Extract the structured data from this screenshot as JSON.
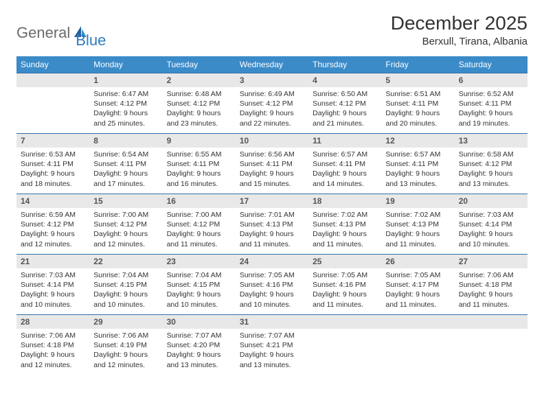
{
  "logo": {
    "word1": "General",
    "word2": "Blue"
  },
  "title": "December 2025",
  "location": "Berxull, Tirana, Albania",
  "colors": {
    "header_bg": "#3b8bc9",
    "header_text": "#ffffff",
    "row_divider": "#2f6fa8",
    "daynum_bg": "#e8e8e8",
    "logo_gray": "#6b6b6b",
    "logo_blue": "#2f7bbf"
  },
  "weekdays": [
    "Sunday",
    "Monday",
    "Tuesday",
    "Wednesday",
    "Thursday",
    "Friday",
    "Saturday"
  ],
  "weeks": [
    [
      null,
      {
        "n": "1",
        "sr": "6:47 AM",
        "ss": "4:12 PM",
        "dl": "9 hours and 25 minutes."
      },
      {
        "n": "2",
        "sr": "6:48 AM",
        "ss": "4:12 PM",
        "dl": "9 hours and 23 minutes."
      },
      {
        "n": "3",
        "sr": "6:49 AM",
        "ss": "4:12 PM",
        "dl": "9 hours and 22 minutes."
      },
      {
        "n": "4",
        "sr": "6:50 AM",
        "ss": "4:12 PM",
        "dl": "9 hours and 21 minutes."
      },
      {
        "n": "5",
        "sr": "6:51 AM",
        "ss": "4:11 PM",
        "dl": "9 hours and 20 minutes."
      },
      {
        "n": "6",
        "sr": "6:52 AM",
        "ss": "4:11 PM",
        "dl": "9 hours and 19 minutes."
      }
    ],
    [
      {
        "n": "7",
        "sr": "6:53 AM",
        "ss": "4:11 PM",
        "dl": "9 hours and 18 minutes."
      },
      {
        "n": "8",
        "sr": "6:54 AM",
        "ss": "4:11 PM",
        "dl": "9 hours and 17 minutes."
      },
      {
        "n": "9",
        "sr": "6:55 AM",
        "ss": "4:11 PM",
        "dl": "9 hours and 16 minutes."
      },
      {
        "n": "10",
        "sr": "6:56 AM",
        "ss": "4:11 PM",
        "dl": "9 hours and 15 minutes."
      },
      {
        "n": "11",
        "sr": "6:57 AM",
        "ss": "4:11 PM",
        "dl": "9 hours and 14 minutes."
      },
      {
        "n": "12",
        "sr": "6:57 AM",
        "ss": "4:11 PM",
        "dl": "9 hours and 13 minutes."
      },
      {
        "n": "13",
        "sr": "6:58 AM",
        "ss": "4:12 PM",
        "dl": "9 hours and 13 minutes."
      }
    ],
    [
      {
        "n": "14",
        "sr": "6:59 AM",
        "ss": "4:12 PM",
        "dl": "9 hours and 12 minutes."
      },
      {
        "n": "15",
        "sr": "7:00 AM",
        "ss": "4:12 PM",
        "dl": "9 hours and 12 minutes."
      },
      {
        "n": "16",
        "sr": "7:00 AM",
        "ss": "4:12 PM",
        "dl": "9 hours and 11 minutes."
      },
      {
        "n": "17",
        "sr": "7:01 AM",
        "ss": "4:13 PM",
        "dl": "9 hours and 11 minutes."
      },
      {
        "n": "18",
        "sr": "7:02 AM",
        "ss": "4:13 PM",
        "dl": "9 hours and 11 minutes."
      },
      {
        "n": "19",
        "sr": "7:02 AM",
        "ss": "4:13 PM",
        "dl": "9 hours and 11 minutes."
      },
      {
        "n": "20",
        "sr": "7:03 AM",
        "ss": "4:14 PM",
        "dl": "9 hours and 10 minutes."
      }
    ],
    [
      {
        "n": "21",
        "sr": "7:03 AM",
        "ss": "4:14 PM",
        "dl": "9 hours and 10 minutes."
      },
      {
        "n": "22",
        "sr": "7:04 AM",
        "ss": "4:15 PM",
        "dl": "9 hours and 10 minutes."
      },
      {
        "n": "23",
        "sr": "7:04 AM",
        "ss": "4:15 PM",
        "dl": "9 hours and 10 minutes."
      },
      {
        "n": "24",
        "sr": "7:05 AM",
        "ss": "4:16 PM",
        "dl": "9 hours and 10 minutes."
      },
      {
        "n": "25",
        "sr": "7:05 AM",
        "ss": "4:16 PM",
        "dl": "9 hours and 11 minutes."
      },
      {
        "n": "26",
        "sr": "7:05 AM",
        "ss": "4:17 PM",
        "dl": "9 hours and 11 minutes."
      },
      {
        "n": "27",
        "sr": "7:06 AM",
        "ss": "4:18 PM",
        "dl": "9 hours and 11 minutes."
      }
    ],
    [
      {
        "n": "28",
        "sr": "7:06 AM",
        "ss": "4:18 PM",
        "dl": "9 hours and 12 minutes."
      },
      {
        "n": "29",
        "sr": "7:06 AM",
        "ss": "4:19 PM",
        "dl": "9 hours and 12 minutes."
      },
      {
        "n": "30",
        "sr": "7:07 AM",
        "ss": "4:20 PM",
        "dl": "9 hours and 13 minutes."
      },
      {
        "n": "31",
        "sr": "7:07 AM",
        "ss": "4:21 PM",
        "dl": "9 hours and 13 minutes."
      },
      null,
      null,
      null
    ]
  ],
  "labels": {
    "sunrise": "Sunrise:",
    "sunset": "Sunset:",
    "daylight": "Daylight:"
  }
}
